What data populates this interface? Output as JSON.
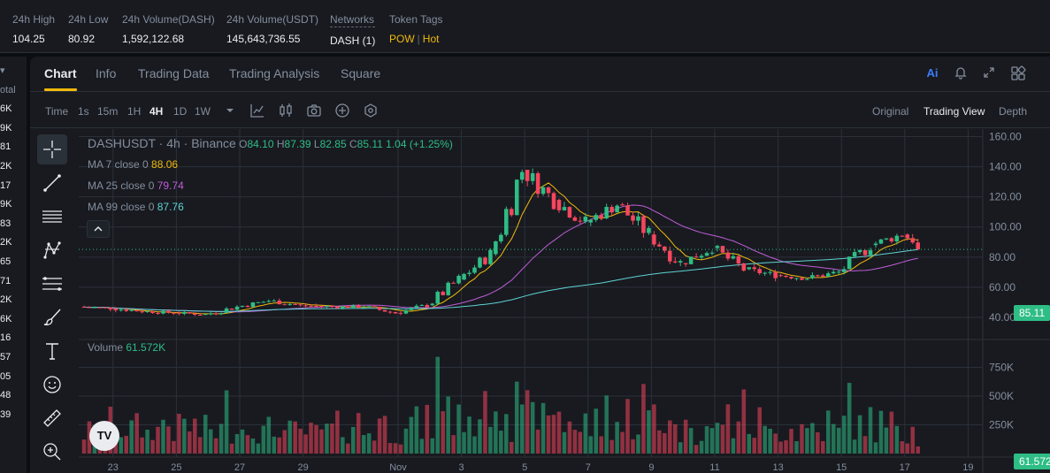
{
  "stats": [
    {
      "label": "24h High",
      "value": "104.25"
    },
    {
      "label": "24h Low",
      "value": "80.92"
    },
    {
      "label": "24h Volume(DASH)",
      "value": "1,592,122.68"
    },
    {
      "label": "24h Volume(USDT)",
      "value": "145,643,736.55"
    },
    {
      "label": "Networks",
      "value": "DASH (1)"
    },
    {
      "label": "Token Tags",
      "tags": [
        "POW",
        "Hot"
      ]
    }
  ],
  "orderbook_strip": [
    "otal",
    "6K",
    "9K",
    "81",
    "2K",
    "17",
    "9K",
    "83",
    "2K",
    "65",
    "71",
    "2K",
    "6K",
    "16",
    "57",
    "05",
    "48",
    "39"
  ],
  "tabs": [
    "Chart",
    "Info",
    "Trading Data",
    "Trading Analysis",
    "Square"
  ],
  "active_tab": "Chart",
  "tab_icons": [
    "ai-icon",
    "bell-icon",
    "expand-icon",
    "layout-icon"
  ],
  "toolbar": {
    "time_label": "Time",
    "intervals": [
      "1s",
      "15m",
      "1H",
      "4H",
      "1D",
      "1W"
    ],
    "active_interval": "4H",
    "icons": [
      "dropdown-caret-icon",
      "indicator-icon",
      "candle-type-icon",
      "camera-icon",
      "add-icon",
      "settings-icon"
    ],
    "views": [
      "Original",
      "Trading View",
      "Depth"
    ],
    "active_view": "Trading View"
  },
  "drawing_tools": [
    "crosshair-icon",
    "trendline-icon",
    "horizontal-lines-icon",
    "pattern-icon",
    "fib-icon",
    "brush-icon",
    "text-icon",
    "emoji-icon",
    "ruler-icon",
    "zoom-in-icon"
  ],
  "legend": {
    "symbol": "DASHUSDT · 4h · Binance",
    "open_label": "O",
    "open": "84.10",
    "high_label": "H",
    "high": "87.39",
    "low_label": "L",
    "low": "82.85",
    "close_label": "C",
    "close": "85.11",
    "change": "1.04 (+1.25%)",
    "ma7_label": "MA 7 close 0",
    "ma7": "88.06",
    "ma25_label": "MA 25 close 0",
    "ma25": "79.74",
    "ma99_label": "MA 99 close 0",
    "ma99": "87.76",
    "volume_label": "Volume",
    "volume": "61.572K"
  },
  "colors": {
    "up": "#2ebd85",
    "down": "#f6465d",
    "ma7": "#f0b90b",
    "ma25": "#c05dd6",
    "ma99": "#5fd3d3",
    "accent": "#f0b90b"
  },
  "logo_text": "TV",
  "current_price_tag": "85.11",
  "current_volume_tag": "61.572K",
  "chart_data": {
    "type": "candlestick",
    "title": "DASHUSDT · 4h · Binance",
    "price_axis_ticks": [
      "160.00",
      "140.00",
      "120.00",
      "100.00",
      "80.00",
      "60.00",
      "40.00"
    ],
    "volume_axis_ticks": [
      "750K",
      "500K",
      "250K"
    ],
    "x_tick_labels": [
      "23",
      "25",
      "27",
      "29",
      "Nov",
      "3",
      "5",
      "7",
      "9",
      "11",
      "13",
      "15",
      "17",
      "19"
    ],
    "ylim": [
      30,
      165
    ],
    "volume_ylim": [
      0,
      900000
    ],
    "daily_closes": [
      {
        "d": "22",
        "o": 47,
        "c": 46
      },
      {
        "d": "23",
        "o": 46,
        "c": 44
      },
      {
        "d": "24",
        "o": 44,
        "c": 43
      },
      {
        "d": "25",
        "o": 43,
        "c": 42
      },
      {
        "d": "26",
        "o": 42,
        "c": 47
      },
      {
        "d": "27",
        "o": 47,
        "c": 51
      },
      {
        "d": "28",
        "o": 51,
        "c": 48
      },
      {
        "d": "29",
        "o": 48,
        "c": 47
      },
      {
        "d": "30",
        "o": 47,
        "c": 47
      },
      {
        "d": "31",
        "o": 47,
        "c": 43
      },
      {
        "d": "Nov",
        "o": 43,
        "c": 48
      },
      {
        "d": "2",
        "o": 48,
        "c": 65
      },
      {
        "d": "3",
        "o": 65,
        "c": 82
      },
      {
        "d": "4",
        "o": 82,
        "c": 138
      },
      {
        "d": "5",
        "o": 138,
        "c": 118
      },
      {
        "d": "6",
        "o": 118,
        "c": 103
      },
      {
        "d": "7",
        "o": 103,
        "c": 115
      },
      {
        "d": "8",
        "o": 115,
        "c": 95
      },
      {
        "d": "9",
        "o": 95,
        "c": 76
      },
      {
        "d": "10",
        "o": 76,
        "c": 86
      },
      {
        "d": "11",
        "o": 86,
        "c": 72
      },
      {
        "d": "12",
        "o": 72,
        "c": 68
      },
      {
        "d": "13",
        "o": 68,
        "c": 66
      },
      {
        "d": "14",
        "o": 66,
        "c": 70
      },
      {
        "d": "15",
        "o": 70,
        "c": 88
      },
      {
        "d": "16",
        "o": 88,
        "c": 95
      },
      {
        "d": "17",
        "o": 95,
        "c": 85.11
      }
    ],
    "current_price": 85.11,
    "last_volume": 61572
  }
}
